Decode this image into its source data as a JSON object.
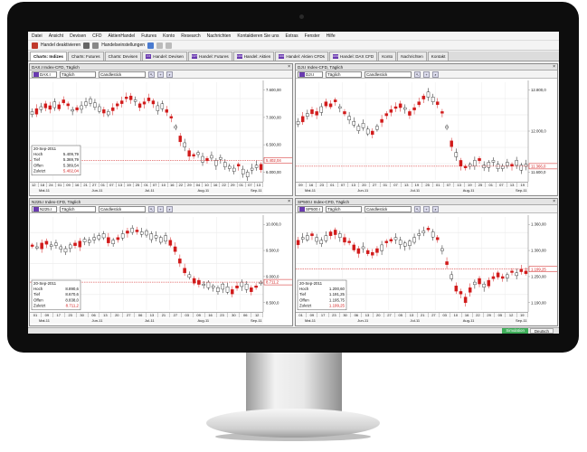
{
  "menu": [
    "Datei",
    "Ansicht",
    "Devisen",
    "CFD",
    "AktienHandel",
    "Futures",
    "Konto",
    "Research",
    "Nachrichten",
    "Kontaktieren Sie uns",
    "Extras",
    "Fenster",
    "Hilfe"
  ],
  "toolbar": {
    "trade_off_label": "Handel deaktivieren",
    "trade_settings_label": "Handelseinstellungen"
  },
  "tabs": [
    {
      "label": "Charts: Indizes",
      "active": true,
      "badge": ""
    },
    {
      "label": "Charts: Futures",
      "badge": ""
    },
    {
      "label": "Charts: Devisen",
      "badge": ""
    },
    {
      "label": "Handel: Devisen",
      "badge": "FX"
    },
    {
      "label": "Handel: Futures",
      "badge": "FUT"
    },
    {
      "label": "Handel: Aktien",
      "badge": "CFD"
    },
    {
      "label": "Handel: Aktien CFDs",
      "badge": "CFD"
    },
    {
      "label": "Handel: DAX CFD",
      "badge": "CFD"
    },
    {
      "label": "Konto",
      "badge": ""
    },
    {
      "label": "Nachrichten",
      "badge": ""
    },
    {
      "label": "Kontakt",
      "badge": ""
    }
  ],
  "panels": {
    "dax": {
      "title": "DAX.I Index-CFD, Täglich",
      "symbol": "DAX.I",
      "interval": "Täglich",
      "charttype": "Candlestick",
      "yticks": [
        "7.600,00",
        "7.000,00",
        "6.500,00",
        "6.000,00"
      ],
      "last_box": "5.402,04",
      "day_ticks": [
        "12",
        "18",
        "24",
        "01",
        "09",
        "16",
        "21",
        "27",
        "01",
        "07",
        "13",
        "19",
        "25",
        "01",
        "07",
        "10",
        "16",
        "22",
        "29",
        "04",
        "10",
        "16",
        "22",
        "29",
        "01",
        "07",
        "13"
      ],
      "months": [
        "Mai-11",
        "Jun-11",
        "Jul-11",
        "Aug-11",
        "Sep-11"
      ],
      "info": {
        "date": "20-Sep-2011",
        "rows": [
          [
            "Hoch",
            "5.409,79"
          ],
          [
            "Tief",
            "5.369,79"
          ],
          [
            "Offen",
            "5.389,54"
          ],
          [
            "Zuletzt",
            "5.402,04"
          ]
        ]
      }
    },
    "dji": {
      "title": "DJI.I Index-CFD, Täglich",
      "symbol": "DJI.I",
      "interval": "Täglich",
      "charttype": "Candlestick",
      "yticks": [
        "12.800,0",
        "12.000,0",
        "11.600,0"
      ],
      "last_box": "11.366,0",
      "day_ticks": [
        "09",
        "16",
        "23",
        "01",
        "07",
        "13",
        "20",
        "27",
        "01",
        "07",
        "13",
        "19",
        "25",
        "01",
        "07",
        "13",
        "19",
        "25",
        "01",
        "07",
        "13",
        "19"
      ],
      "months": [
        "Mai-11",
        "Jun-11",
        "Jul-11",
        "Aug-11",
        "Sep-11"
      ],
      "info": {
        "date": "",
        "rows": []
      }
    },
    "n225": {
      "title": "N225.I Index-CFD, Täglich",
      "symbol": "N225.I",
      "interval": "Täglich",
      "charttype": "Candlestick",
      "yticks": [
        "10.000,0",
        "9.500,0",
        "9.000,0",
        "8.500,0"
      ],
      "last_box": "8.711,2",
      "day_ticks": [
        "01",
        "09",
        "17",
        "23",
        "30",
        "06",
        "13",
        "20",
        "27",
        "06",
        "13",
        "21",
        "27",
        "03",
        "09",
        "16",
        "23",
        "30",
        "06",
        "12"
      ],
      "months": [
        "Mai-11",
        "Jun-11",
        "Jul-11",
        "Aug-11",
        "Sep-11"
      ],
      "info": {
        "date": "20-Sep-2011",
        "rows": [
          [
            "Hoch",
            "8.890,6"
          ],
          [
            "Tief",
            "8.670,6"
          ],
          [
            "Offen",
            "8.838,0"
          ],
          [
            "Zuletzt",
            "8.711,2"
          ]
        ]
      }
    },
    "sp500": {
      "title": "SP500.I Index-CFD, Täglich",
      "symbol": "SP500.I",
      "interval": "Täglich",
      "charttype": "Candlestick",
      "yticks": [
        "1.360,00",
        "1.300,00",
        "1.250,00",
        "1.190,00"
      ],
      "last_box": "1.199,25",
      "day_ticks": [
        "01",
        "09",
        "17",
        "23",
        "30",
        "06",
        "13",
        "20",
        "27",
        "05",
        "13",
        "21",
        "27",
        "03",
        "10",
        "16",
        "22",
        "29",
        "05",
        "12",
        "19"
      ],
      "months": [
        "Mai-11",
        "Jun-11",
        "Jul-11",
        "Aug-11",
        "Sep-11"
      ],
      "info": {
        "date": "20-Sep-2011",
        "rows": [
          [
            "Hoch",
            "1.200,60"
          ],
          [
            "Tief",
            "1.191,25"
          ],
          [
            "Offen",
            "1.195,75"
          ],
          [
            "Zuletzt",
            "1.199,25"
          ]
        ]
      }
    }
  },
  "status": {
    "mode": "Simulation",
    "language": "Deutsch"
  },
  "colors": {
    "up": "#1a1a1a",
    "down": "#d11a1a",
    "lastline": "#d11a1a"
  }
}
